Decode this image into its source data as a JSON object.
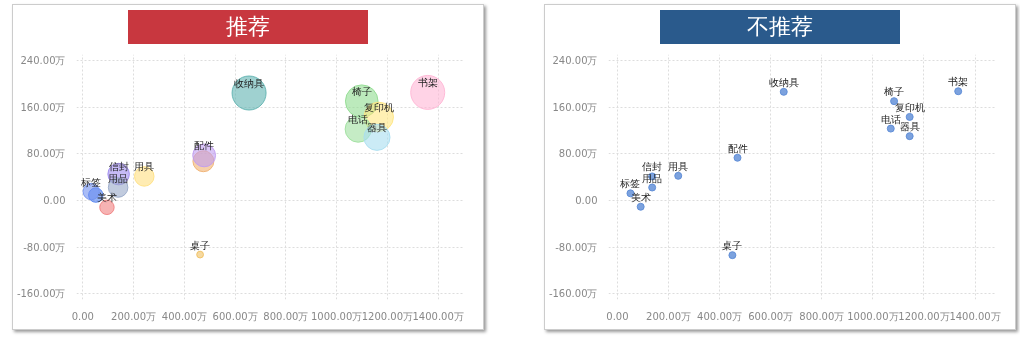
{
  "chart_data": [
    {
      "type": "bubble",
      "title": "推荐",
      "marker": "circle",
      "grid": true,
      "x": [
        655,
        1359,
        1099,
        1166,
        1085,
        1159,
        475,
        478,
        141,
        51,
        242,
        139,
        33,
        95,
        462
      ],
      "values": [
        184,
        185,
        170,
        143,
        122,
        108,
        67,
        77,
        45,
        9,
        41,
        22,
        15,
        -12,
        -93
      ],
      "sizes": [
        1,
        1,
        0.92,
        0.75,
        0.59,
        0.59,
        0.38,
        0.45,
        0.4,
        0.18,
        0.33,
        0.33,
        0.23,
        0.18,
        0.04
      ],
      "colors": [
        "#5fb3b0",
        "#ffb6d5",
        "#90dc90",
        "#ffe680",
        "#9ee09e",
        "#a8def0",
        "#f0b070",
        "#c09cf0",
        "#a08cf0",
        "#5080f0",
        "#ffe080",
        "#98a8c8",
        "#7090f0",
        "#f08080",
        "#f0c060"
      ],
      "annotations": [
        {
          "text": "收纳具",
          "x": 655,
          "y": 184
        },
        {
          "text": "书架",
          "x": 1359,
          "y": 185
        },
        {
          "text": "椅子",
          "x": 1099,
          "y": 170
        },
        {
          "text": "复印机",
          "x": 1166,
          "y": 143
        },
        {
          "text": "电话",
          "x": 1085,
          "y": 122
        },
        {
          "text": "器具",
          "x": 1159,
          "y": 108
        },
        {
          "text": "配件",
          "x": 478,
          "y": 77
        },
        {
          "text": "信封",
          "x": 141,
          "y": 41
        },
        {
          "text": "用具",
          "x": 242,
          "y": 41
        },
        {
          "text": "用品",
          "x": 139,
          "y": 22
        },
        {
          "text": "标签",
          "x": 33,
          "y": 15
        },
        {
          "text": "美术",
          "x": 95,
          "y": -12
        },
        {
          "text": "桌子",
          "x": 462,
          "y": -93
        }
      ],
      "xlim": [
        -25,
        1500
      ],
      "ylim": [
        -170,
        250
      ],
      "xticks": [
        {
          "value": 0,
          "label": "0.00"
        },
        {
          "value": 200,
          "label": "200.00万"
        },
        {
          "value": 400,
          "label": "400.00万"
        },
        {
          "value": 600,
          "label": "600.00万"
        },
        {
          "value": 800,
          "label": "800.00万"
        },
        {
          "value": 1000,
          "label": "1000.00万"
        },
        {
          "value": 1200,
          "label": "1200.00万"
        },
        {
          "value": 1400,
          "label": "1400.00万"
        }
      ],
      "yticks": [
        {
          "value": -160,
          "label": "-160.00万"
        },
        {
          "value": -80,
          "label": "-80.00万"
        },
        {
          "value": 0,
          "label": "0.00"
        },
        {
          "value": 80,
          "label": "80.00万"
        },
        {
          "value": 160,
          "label": "160.00万"
        },
        {
          "value": 240,
          "label": "240.00万"
        }
      ]
    },
    {
      "type": "scatter",
      "title": "不推荐",
      "marker": "circle",
      "grid": true,
      "x": [
        651,
        1334,
        1083,
        1144,
        1070,
        1144,
        470,
        136,
        238,
        136,
        51,
        91,
        450
      ],
      "values": [
        186,
        187,
        170,
        143,
        123,
        110,
        73,
        41,
        42,
        22,
        12,
        -11,
        -94
      ],
      "colors": [
        "#5b8bd6",
        "#5b8bd6",
        "#5b8bd6",
        "#5b8bd6",
        "#5b8bd6",
        "#5b8bd6",
        "#5b8bd6",
        "#5b8bd6",
        "#5b8bd6",
        "#5b8bd6",
        "#5b8bd6",
        "#5b8bd6",
        "#5b8bd6"
      ],
      "annotations": [
        {
          "text": "收纳具",
          "x": 651,
          "y": 186
        },
        {
          "text": "书架",
          "x": 1334,
          "y": 187
        },
        {
          "text": "椅子",
          "x": 1083,
          "y": 170
        },
        {
          "text": "复印机",
          "x": 1144,
          "y": 143
        },
        {
          "text": "电话",
          "x": 1070,
          "y": 123
        },
        {
          "text": "器具",
          "x": 1144,
          "y": 110
        },
        {
          "text": "配件",
          "x": 470,
          "y": 73
        },
        {
          "text": "信封",
          "x": 136,
          "y": 41
        },
        {
          "text": "用具",
          "x": 238,
          "y": 42
        },
        {
          "text": "用品",
          "x": 136,
          "y": 22
        },
        {
          "text": "标签",
          "x": 51,
          "y": 12
        },
        {
          "text": "美术",
          "x": 91,
          "y": -11
        },
        {
          "text": "桌子",
          "x": 450,
          "y": -94
        }
      ],
      "xlim": [
        -35,
        1480
      ],
      "ylim": [
        -170,
        250
      ],
      "xticks": [
        {
          "value": 0,
          "label": "0.00"
        },
        {
          "value": 200,
          "label": "200.00万"
        },
        {
          "value": 400,
          "label": "400.00万"
        },
        {
          "value": 600,
          "label": "600.00万"
        },
        {
          "value": 800,
          "label": "800.00万"
        },
        {
          "value": 1000,
          "label": "1000.00万"
        },
        {
          "value": 1200,
          "label": "1200.00万"
        },
        {
          "value": 1400,
          "label": "1400.00万"
        }
      ],
      "yticks": [
        {
          "value": -160,
          "label": "-160.00万"
        },
        {
          "value": -80,
          "label": "-80.00万"
        },
        {
          "value": 0,
          "label": "0.00"
        },
        {
          "value": 80,
          "label": "80.00万"
        },
        {
          "value": 160,
          "label": "160.00万"
        },
        {
          "value": 240,
          "label": "240.00万"
        }
      ]
    }
  ]
}
